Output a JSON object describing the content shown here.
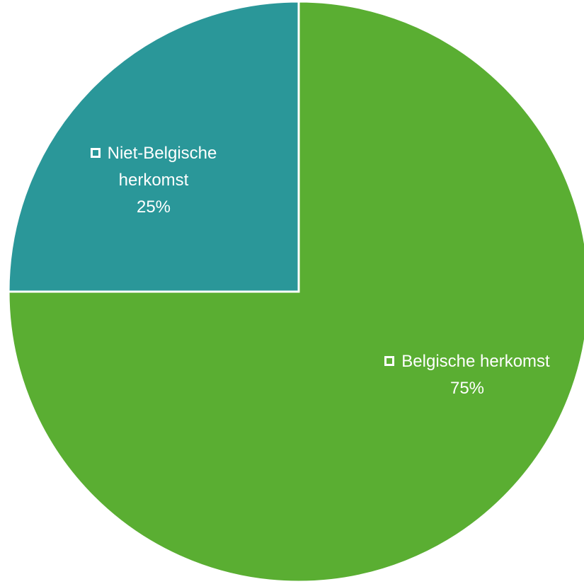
{
  "chart_data": {
    "type": "pie",
    "title": "",
    "start_angle_deg": 0,
    "direction": "clockwise",
    "slices": [
      {
        "key": "belgisch",
        "name": "Belgische herkomst",
        "label_lines": [
          "Belgische herkomst"
        ],
        "value": 75,
        "display_value": "75%",
        "color": "#5aae32"
      },
      {
        "key": "niet_belgisch",
        "name": "Niet-Belgische herkomst",
        "label_lines": [
          "Niet-Belgische",
          "herkomst"
        ],
        "value": 25,
        "display_value": "25%",
        "color": "#2a9799"
      }
    ],
    "slice_border_color": "#ffffff",
    "label_color": "#ffffff"
  }
}
